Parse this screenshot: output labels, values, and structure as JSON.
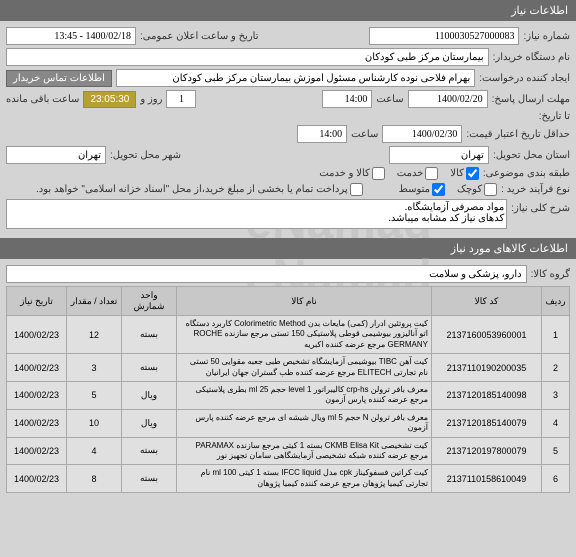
{
  "header": {
    "title": "اطلاعات نیاز"
  },
  "form": {
    "need_number_label": "شماره نیاز:",
    "need_number": "1100030527000083",
    "announce_label": "تاریخ و ساعت اعلان عمومی:",
    "announce_value": "1400/02/18 - 13:45",
    "buyer_label": "نام دستگاه خریدار:",
    "buyer_value": "بیمارستان مرکز طبی کودکان",
    "buyer_contact_btn": "اطلاعات تماس خریدار",
    "creator_label": "ایجاد کننده درخواست:",
    "creator_value": "بهرام فلاحی نوده کارشناس مسئول آموزش بیمارستان مرکز طبی کودکان",
    "deadline_label": "مهلت ارسال پاسخ:",
    "deadline_date": "1400/02/20",
    "time_label": "ساعت",
    "deadline_time": "14:00",
    "day_count": "1",
    "day_label": "روز و",
    "countdown": "23:05:30",
    "remaining_label": "ساعت باقی مانده",
    "to_date_label": "تا تاریخ:",
    "min_validity_label": "حداقل تاریخ اعتبار قیمت:",
    "min_validity_date": "1400/02/30",
    "min_validity_time": "14:00",
    "delivery_province_label": "استان محل تحویل:",
    "delivery_province": "تهران",
    "delivery_city_label": "شهر محل تحویل:",
    "delivery_city": "تهران",
    "budget_label": "طبقه بندی موضوعی:",
    "budget_goods": "کالا",
    "budget_service": "خدمت",
    "budget_goods_service": "کالا و خدمت",
    "purchase_type_label": "نوع فرآیند خرید :",
    "purchase_small": "کوچک",
    "purchase_medium": "متوسط",
    "payment_note": "پرداخت تمام یا بخشی از مبلغ خرید،از محل \"اسناد خزانه اسلامی\" خواهد بود.",
    "desc_label": "شرح کلی نیاز:",
    "desc_value": "مواد مصرفی آزمایشگاه.\nکدهای نیاز کد مشابه میباشد."
  },
  "items_header": {
    "title": "اطلاعات کالاهای مورد نیاز"
  },
  "group": {
    "label": "گروه کالا:",
    "value": "دارو، پزشکی و سلامت"
  },
  "table": {
    "headers": {
      "row": "ردیف",
      "code": "کد کالا",
      "name": "نام کالا",
      "unit": "واحد شمارش",
      "qty": "تعداد / مقدار",
      "date": "تاریخ نیاز"
    },
    "rows": [
      {
        "n": "1",
        "code": "2137160053960001",
        "name": "کیت پروتئین ادرار (کمی) مایعات بدن Colorimetric Method کاربرد دستگاه اتو آنالیزور بیوشیمی قوطی پلاستیکی 150 تستی مرجع سازنده ROCHE GERMANY مرجع عرضه کننده اکبریه",
        "unit": "بسته",
        "qty": "12",
        "date": "1400/02/23"
      },
      {
        "n": "2",
        "code": "2137110190200035",
        "name": "کیت آهن TIBC بیوشیمی آزمایشگاه تشخیص طبی جعبه مقوایی 50 تستی نام تجارتی ELITECH مرجع عرضه کننده طب گستران جهان ایرانیان",
        "unit": "بسته",
        "qty": "3",
        "date": "1400/02/23"
      },
      {
        "n": "3",
        "code": "2137120185140098",
        "name": "معرف بافر ترولن crp-hs کالیبراتور level 1 حجم ml 25 بطری پلاستیکی مرجع عرضه کننده پارس آزمون",
        "unit": "ویال",
        "qty": "5",
        "date": "1400/02/23"
      },
      {
        "n": "4",
        "code": "2137120185140079",
        "name": "معرف بافر ترولن N حجم ml 5 ویال شیشه ای مرجع عرضه کننده پارس آزمون",
        "unit": "ویال",
        "qty": "10",
        "date": "1400/02/23"
      },
      {
        "n": "5",
        "code": "2137120197800079",
        "name": "کیت تشخیصی CKMB Elisa Kit بسته 1 کیتی مرجع سازنده PARAMAX مرجع عرضه کننده شبکه تشخیصی آزمایشگاهی سامان تجهیز نور",
        "unit": "بسته",
        "qty": "4",
        "date": "1400/02/23"
      },
      {
        "n": "6",
        "code": "2137110158610049",
        "name": "کیت کراتین فسفوکیناز cpk مدل IFCC liquid بسته 1 کیتی ml 100 نام تجارتی کیمیا پژوهان مرجع عرضه کننده کیمیا پژوهان",
        "unit": "بسته",
        "qty": "8",
        "date": "1400/02/23"
      }
    ]
  }
}
